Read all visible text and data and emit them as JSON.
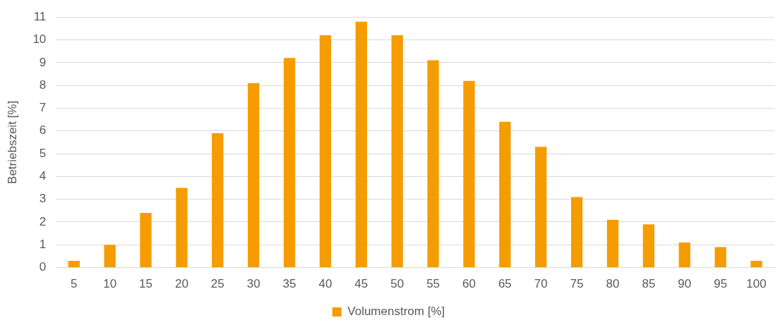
{
  "chart_data": {
    "type": "bar",
    "ylabel": "Betriebszeit [%]",
    "categories": [
      "5",
      "10",
      "15",
      "20",
      "25",
      "30",
      "35",
      "40",
      "45",
      "50",
      "55",
      "60",
      "65",
      "70",
      "75",
      "80",
      "85",
      "90",
      "95",
      "100"
    ],
    "series": [
      {
        "name": "Volumenstrom [%]",
        "color": "#f59c00",
        "values": [
          0.3,
          1.0,
          2.4,
          3.5,
          5.9,
          8.1,
          9.2,
          10.2,
          10.8,
          10.2,
          9.1,
          8.2,
          6.4,
          5.3,
          3.1,
          2.1,
          1.9,
          1.1,
          0.9,
          0.3
        ]
      }
    ],
    "ylim": [
      0,
      11
    ],
    "yticks": [
      0,
      1,
      2,
      3,
      4,
      5,
      6,
      7,
      8,
      9,
      10,
      11
    ],
    "grid": "y",
    "legend": "bottom"
  }
}
